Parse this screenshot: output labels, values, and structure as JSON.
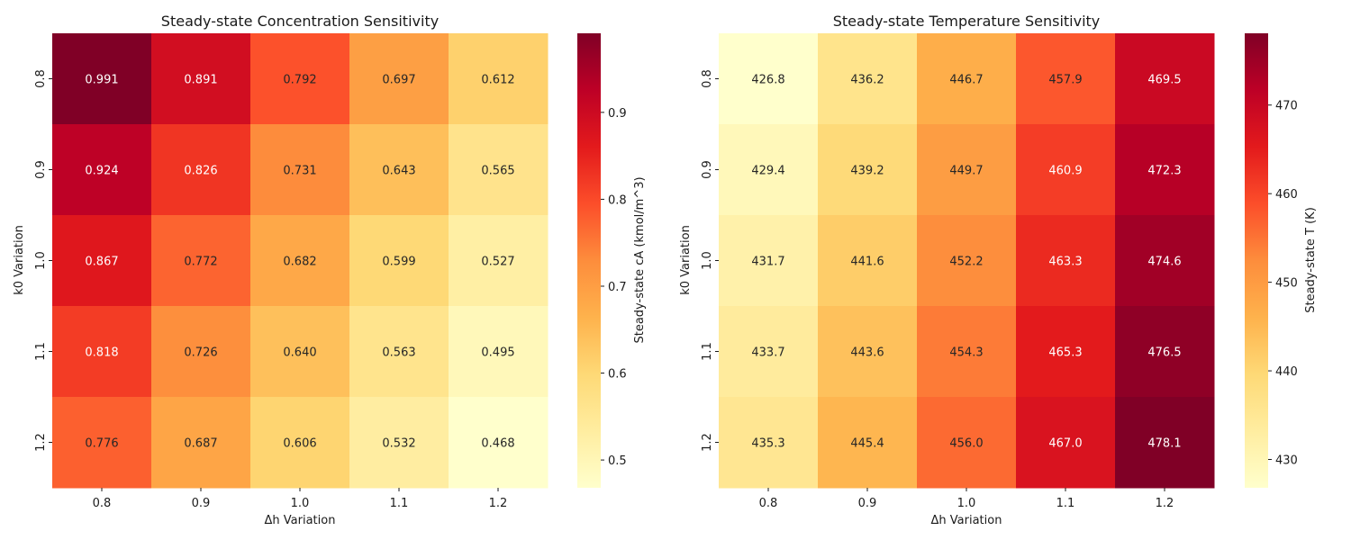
{
  "chart_data": [
    {
      "type": "heatmap",
      "title": "Steady-state Concentration Sensitivity",
      "xlabel": "Δh Variation",
      "ylabel": "k0 Variation",
      "x_categories": [
        "0.8",
        "0.9",
        "1.0",
        "1.1",
        "1.2"
      ],
      "y_categories": [
        "0.8",
        "0.9",
        "1.0",
        "1.1",
        "1.2"
      ],
      "values": [
        [
          0.991,
          0.891,
          0.792,
          0.697,
          0.612
        ],
        [
          0.924,
          0.826,
          0.731,
          0.643,
          0.565
        ],
        [
          0.867,
          0.772,
          0.682,
          0.599,
          0.527
        ],
        [
          0.818,
          0.726,
          0.64,
          0.563,
          0.495
        ],
        [
          0.776,
          0.687,
          0.606,
          0.532,
          0.468
        ]
      ],
      "cell_labels": [
        [
          "0.991",
          "0.891",
          "0.792",
          "0.697",
          "0.612"
        ],
        [
          "0.924",
          "0.826",
          "0.731",
          "0.643",
          "0.565"
        ],
        [
          "0.867",
          "0.772",
          "0.682",
          "0.599",
          "0.527"
        ],
        [
          "0.818",
          "0.726",
          "0.640",
          "0.563",
          "0.495"
        ],
        [
          "0.776",
          "0.687",
          "0.606",
          "0.532",
          "0.468"
        ]
      ],
      "colormap": "YlOrRd",
      "vmin": 0.468,
      "vmax": 0.991,
      "colorbar": {
        "label": "Steady-state cA (kmol/m^3)",
        "ticks": [
          0.5,
          0.6,
          0.7,
          0.8,
          0.9
        ],
        "tick_labels": [
          "0.5",
          "0.6",
          "0.7",
          "0.8",
          "0.9"
        ]
      }
    },
    {
      "type": "heatmap",
      "title": "Steady-state Temperature Sensitivity",
      "xlabel": "Δh Variation",
      "ylabel": "k0 Variation",
      "x_categories": [
        "0.8",
        "0.9",
        "1.0",
        "1.1",
        "1.2"
      ],
      "y_categories": [
        "0.8",
        "0.9",
        "1.0",
        "1.1",
        "1.2"
      ],
      "values": [
        [
          426.8,
          436.2,
          446.7,
          457.9,
          469.5
        ],
        [
          429.4,
          439.2,
          449.7,
          460.9,
          472.3
        ],
        [
          431.7,
          441.6,
          452.2,
          463.3,
          474.6
        ],
        [
          433.7,
          443.6,
          454.3,
          465.3,
          476.5
        ],
        [
          435.3,
          445.4,
          456.0,
          467.0,
          478.1
        ]
      ],
      "cell_labels": [
        [
          "426.8",
          "436.2",
          "446.7",
          "457.9",
          "469.5"
        ],
        [
          "429.4",
          "439.2",
          "449.7",
          "460.9",
          "472.3"
        ],
        [
          "431.7",
          "441.6",
          "452.2",
          "463.3",
          "474.6"
        ],
        [
          "433.7",
          "443.6",
          "454.3",
          "465.3",
          "476.5"
        ],
        [
          "435.3",
          "445.4",
          "456.0",
          "467.0",
          "478.1"
        ]
      ],
      "colormap": "YlOrRd",
      "vmin": 426.8,
      "vmax": 478.1,
      "colorbar": {
        "label": "Steady-state T (K)",
        "ticks": [
          430,
          440,
          450,
          460,
          470
        ],
        "tick_labels": [
          "430",
          "440",
          "450",
          "460",
          "470"
        ]
      }
    }
  ]
}
